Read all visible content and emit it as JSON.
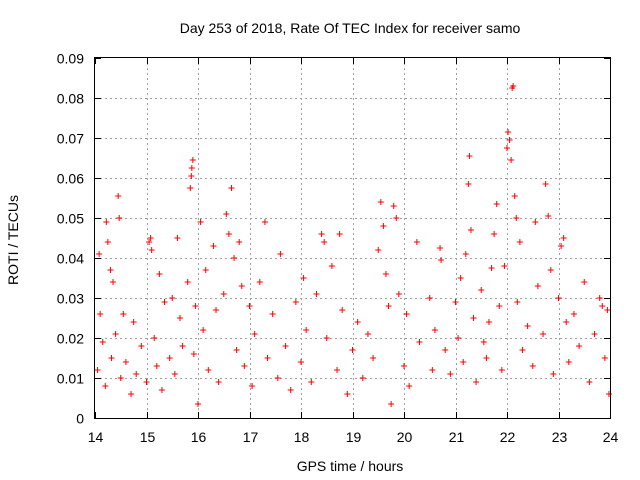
{
  "chart_data": {
    "type": "scatter",
    "title": "Day 253 of 2018, Rate Of TEC Index for receiver samo",
    "xlabel": "GPS time / hours",
    "ylabel": "ROTI / TECUs",
    "xlim": [
      14,
      24
    ],
    "ylim": [
      0,
      0.09
    ],
    "x_ticks": [
      "14",
      "15",
      "16",
      "17",
      "18",
      "19",
      "20",
      "21",
      "22",
      "23",
      "24"
    ],
    "y_ticks": [
      "0",
      "0.01",
      "0.02",
      "0.03",
      "0.04",
      "0.05",
      "0.06",
      "0.07",
      "0.08",
      "0.09"
    ],
    "grid": true,
    "marker": "plus",
    "color": "#ff0000",
    "series": [
      {
        "name": "samo",
        "points": [
          [
            14.05,
            0.012
          ],
          [
            14.08,
            0.041
          ],
          [
            14.1,
            0.026
          ],
          [
            14.15,
            0.019
          ],
          [
            14.2,
            0.008
          ],
          [
            14.22,
            0.049
          ],
          [
            14.25,
            0.044
          ],
          [
            14.3,
            0.037
          ],
          [
            14.32,
            0.015
          ],
          [
            14.35,
            0.034
          ],
          [
            14.4,
            0.021
          ],
          [
            14.45,
            0.0555
          ],
          [
            14.47,
            0.05
          ],
          [
            14.5,
            0.01
          ],
          [
            14.55,
            0.026
          ],
          [
            14.6,
            0.014
          ],
          [
            14.7,
            0.006
          ],
          [
            14.75,
            0.024
          ],
          [
            14.8,
            0.011
          ],
          [
            14.9,
            0.018
          ],
          [
            15.0,
            0.009
          ],
          [
            15.05,
            0.044
          ],
          [
            15.08,
            0.045
          ],
          [
            15.1,
            0.042
          ],
          [
            15.15,
            0.02
          ],
          [
            15.2,
            0.013
          ],
          [
            15.25,
            0.036
          ],
          [
            15.3,
            0.007
          ],
          [
            15.35,
            0.029
          ],
          [
            15.45,
            0.015
          ],
          [
            15.5,
            0.03
          ],
          [
            15.55,
            0.011
          ],
          [
            15.6,
            0.045
          ],
          [
            15.65,
            0.025
          ],
          [
            15.7,
            0.018
          ],
          [
            15.8,
            0.034
          ],
          [
            15.85,
            0.0575
          ],
          [
            15.87,
            0.0605
          ],
          [
            15.88,
            0.0625
          ],
          [
            15.9,
            0.0645
          ],
          [
            15.92,
            0.016
          ],
          [
            15.95,
            0.028
          ],
          [
            16.0,
            0.0035
          ],
          [
            16.05,
            0.049
          ],
          [
            16.1,
            0.022
          ],
          [
            16.15,
            0.037
          ],
          [
            16.2,
            0.012
          ],
          [
            16.3,
            0.043
          ],
          [
            16.35,
            0.027
          ],
          [
            16.4,
            0.009
          ],
          [
            16.5,
            0.031
          ],
          [
            16.55,
            0.051
          ],
          [
            16.6,
            0.046
          ],
          [
            16.65,
            0.0575
          ],
          [
            16.7,
            0.04
          ],
          [
            16.75,
            0.017
          ],
          [
            16.8,
            0.044
          ],
          [
            16.85,
            0.033
          ],
          [
            16.9,
            0.013
          ],
          [
            17.0,
            0.028
          ],
          [
            17.05,
            0.008
          ],
          [
            17.1,
            0.021
          ],
          [
            17.2,
            0.034
          ],
          [
            17.3,
            0.049
          ],
          [
            17.35,
            0.015
          ],
          [
            17.45,
            0.026
          ],
          [
            17.55,
            0.01
          ],
          [
            17.6,
            0.041
          ],
          [
            17.7,
            0.018
          ],
          [
            17.8,
            0.007
          ],
          [
            17.9,
            0.029
          ],
          [
            18.0,
            0.014
          ],
          [
            18.05,
            0.035
          ],
          [
            18.1,
            0.022
          ],
          [
            18.2,
            0.009
          ],
          [
            18.3,
            0.031
          ],
          [
            18.4,
            0.046
          ],
          [
            18.45,
            0.044
          ],
          [
            18.5,
            0.02
          ],
          [
            18.6,
            0.038
          ],
          [
            18.7,
            0.012
          ],
          [
            18.75,
            0.046
          ],
          [
            18.8,
            0.027
          ],
          [
            18.9,
            0.006
          ],
          [
            19.0,
            0.017
          ],
          [
            19.1,
            0.024
          ],
          [
            19.2,
            0.01
          ],
          [
            19.3,
            0.021
          ],
          [
            19.4,
            0.015
          ],
          [
            19.5,
            0.042
          ],
          [
            19.55,
            0.054
          ],
          [
            19.6,
            0.048
          ],
          [
            19.65,
            0.036
          ],
          [
            19.7,
            0.028
          ],
          [
            19.75,
            0.0035
          ],
          [
            19.8,
            0.053
          ],
          [
            19.85,
            0.05
          ],
          [
            19.9,
            0.031
          ],
          [
            20.0,
            0.013
          ],
          [
            20.05,
            0.026
          ],
          [
            20.1,
            0.008
          ],
          [
            20.25,
            0.044
          ],
          [
            20.3,
            0.019
          ],
          [
            20.5,
            0.03
          ],
          [
            20.55,
            0.012
          ],
          [
            20.6,
            0.022
          ],
          [
            20.7,
            0.0425
          ],
          [
            20.72,
            0.0395
          ],
          [
            20.8,
            0.017
          ],
          [
            20.9,
            0.011
          ],
          [
            21.0,
            0.029
          ],
          [
            21.05,
            0.02
          ],
          [
            21.1,
            0.035
          ],
          [
            21.15,
            0.014
          ],
          [
            21.2,
            0.041
          ],
          [
            21.25,
            0.0585
          ],
          [
            21.27,
            0.0655
          ],
          [
            21.3,
            0.047
          ],
          [
            21.35,
            0.025
          ],
          [
            21.4,
            0.009
          ],
          [
            21.5,
            0.032
          ],
          [
            21.55,
            0.019
          ],
          [
            21.6,
            0.015
          ],
          [
            21.65,
            0.024
          ],
          [
            21.7,
            0.0375
          ],
          [
            21.75,
            0.046
          ],
          [
            21.8,
            0.0535
          ],
          [
            21.85,
            0.028
          ],
          [
            21.9,
            0.012
          ],
          [
            21.95,
            0.038
          ],
          [
            22.0,
            0.0675
          ],
          [
            22.02,
            0.0715
          ],
          [
            22.05,
            0.0695
          ],
          [
            22.08,
            0.0645
          ],
          [
            22.1,
            0.0825
          ],
          [
            22.12,
            0.083
          ],
          [
            22.15,
            0.0555
          ],
          [
            22.18,
            0.05
          ],
          [
            22.2,
            0.029
          ],
          [
            22.25,
            0.044
          ],
          [
            22.3,
            0.017
          ],
          [
            22.4,
            0.023
          ],
          [
            22.5,
            0.013
          ],
          [
            22.55,
            0.049
          ],
          [
            22.6,
            0.033
          ],
          [
            22.7,
            0.021
          ],
          [
            22.75,
            0.0585
          ],
          [
            22.8,
            0.0505
          ],
          [
            22.85,
            0.037
          ],
          [
            22.9,
            0.011
          ],
          [
            23.0,
            0.03
          ],
          [
            23.05,
            0.043
          ],
          [
            23.1,
            0.045
          ],
          [
            23.15,
            0.024
          ],
          [
            23.2,
            0.014
          ],
          [
            23.3,
            0.026
          ],
          [
            23.4,
            0.018
          ],
          [
            23.5,
            0.034
          ],
          [
            23.6,
            0.009
          ],
          [
            23.7,
            0.021
          ],
          [
            23.8,
            0.03
          ],
          [
            23.85,
            0.028
          ],
          [
            23.9,
            0.015
          ],
          [
            23.95,
            0.027
          ],
          [
            23.98,
            0.006
          ]
        ]
      }
    ]
  }
}
